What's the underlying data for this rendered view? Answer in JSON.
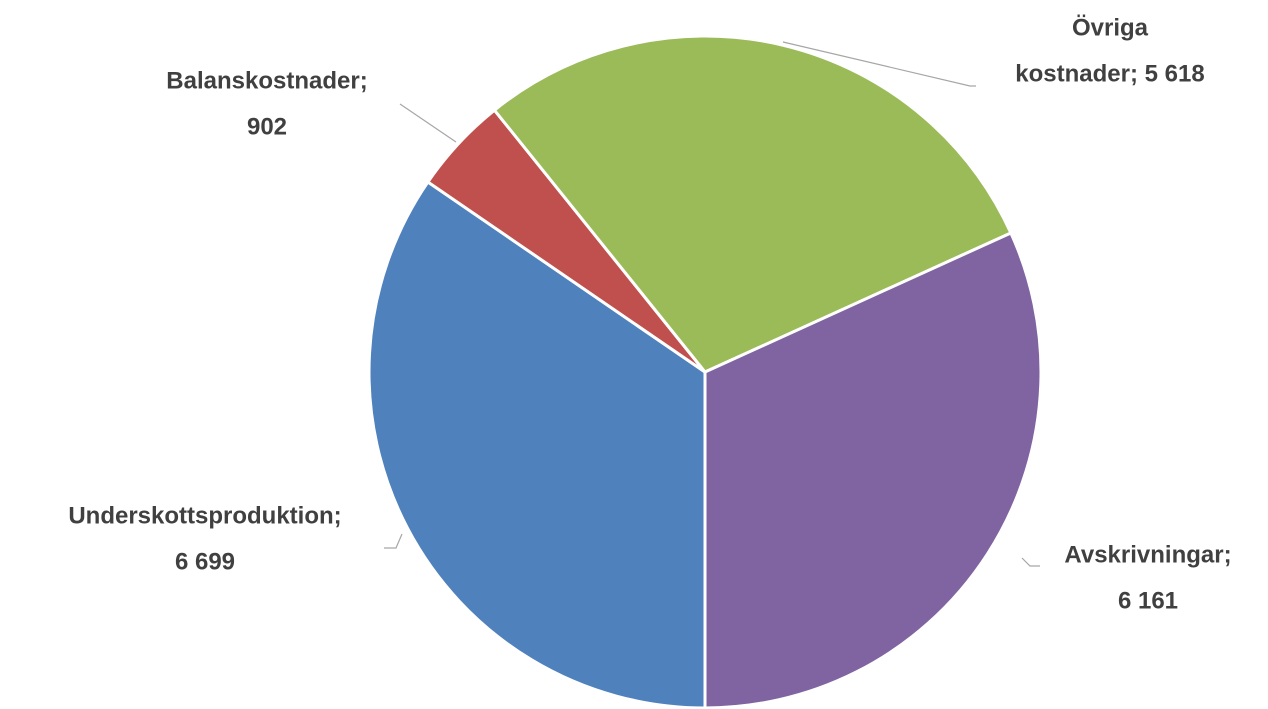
{
  "chart_data": {
    "type": "pie",
    "label_lines": [
      [
        "Underskottsproduktion;",
        "6 699"
      ],
      [
        "Balanskostnader;",
        "902"
      ],
      [
        "Övriga",
        "kostnader; 5 618"
      ],
      [
        "Avskrivningar;",
        "6 161"
      ]
    ],
    "values": [
      6699,
      902,
      5618,
      6161
    ],
    "colors": [
      "#4f81bd",
      "#c0504d",
      "#9bbb59",
      "#8064a2"
    ],
    "start_angle": 180,
    "direction": "clockwise"
  }
}
